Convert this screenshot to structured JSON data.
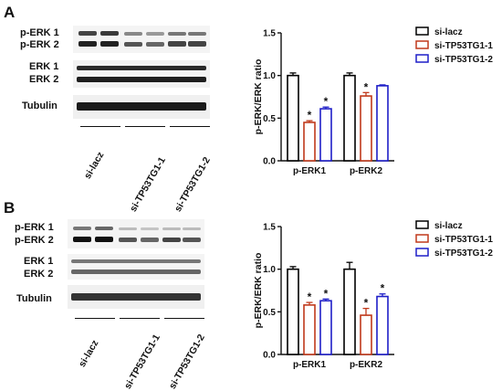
{
  "panels": [
    {
      "letter": "A",
      "blot": {
        "row_labels": [
          "p-ERK 1",
          "p-ERK 2",
          "ERK 1",
          "ERK 2",
          "Tubulin"
        ],
        "groups": [
          "si-lacz",
          "si-TP53TG1-1",
          "si-TP53TG1-2"
        ]
      },
      "chart_data": {
        "type": "bar",
        "ylabel": "p-ERK/ERK ratio",
        "ylim": [
          0.0,
          1.5
        ],
        "yticks": [
          "0.0",
          "0.5",
          "1.0",
          "1.5"
        ],
        "categories": [
          "p-ERK1",
          "p-ERK2"
        ],
        "legend_position": "top-right",
        "series": [
          {
            "name": "si-lacz",
            "color": "#000000",
            "values": [
              1.0,
              1.0
            ],
            "errors": [
              0.03,
              0.03
            ],
            "significant": [
              false,
              false
            ]
          },
          {
            "name": "si-TP53TG1-1",
            "color": "#c0391b",
            "values": [
              0.45,
              0.76
            ],
            "errors": [
              0.02,
              0.04
            ],
            "significant": [
              true,
              true
            ]
          },
          {
            "name": "si-TP53TG1-2",
            "color": "#1e1ec8",
            "values": [
              0.61,
              0.88
            ],
            "errors": [
              0.02,
              0.01
            ],
            "significant": [
              true,
              false
            ]
          }
        ],
        "significance_mark": "*"
      }
    },
    {
      "letter": "B",
      "blot": {
        "row_labels": [
          "p-ERK 1",
          "p-ERK 2",
          "ERK 1",
          "ERK 2",
          "Tubulin"
        ],
        "groups": [
          "si-lacz",
          "si-TP53TG1-1",
          "si-TP53TG1-2"
        ]
      },
      "chart_data": {
        "type": "bar",
        "ylabel": "p-ERK/ERK ratio",
        "ylim": [
          0.0,
          1.5
        ],
        "yticks": [
          "0.0",
          "0.5",
          "1.0",
          "1.5"
        ],
        "categories": [
          "p-ERK1",
          "p-EKR2"
        ],
        "legend_position": "top-right",
        "series": [
          {
            "name": "si-lacz",
            "color": "#000000",
            "values": [
              1.0,
              1.0
            ],
            "errors": [
              0.03,
              0.08
            ],
            "significant": [
              false,
              false
            ]
          },
          {
            "name": "si-TP53TG1-1",
            "color": "#c0391b",
            "values": [
              0.58,
              0.46
            ],
            "errors": [
              0.03,
              0.08
            ],
            "significant": [
              true,
              true
            ]
          },
          {
            "name": "si-TP53TG1-2",
            "color": "#1e1ec8",
            "values": [
              0.63,
              0.68
            ],
            "errors": [
              0.02,
              0.03
            ],
            "significant": [
              true,
              true
            ]
          }
        ],
        "significance_mark": "*"
      }
    }
  ]
}
